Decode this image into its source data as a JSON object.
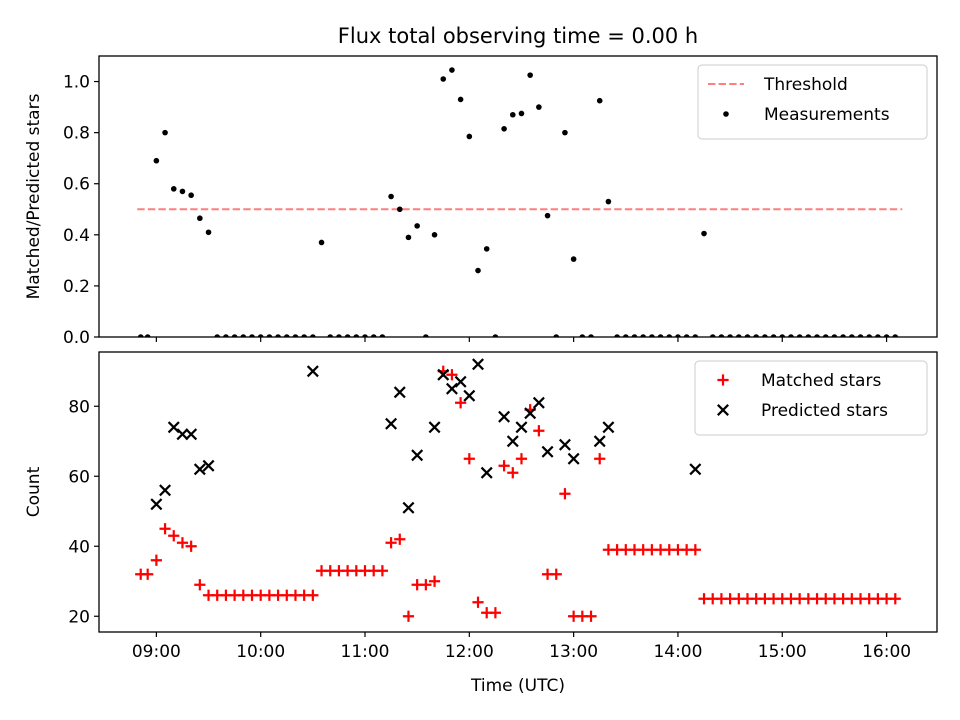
{
  "figure": {
    "title": "Flux total observing time = 0.00 h",
    "xlabel": "Time (UTC)"
  },
  "chart_data": [
    {
      "type": "scatter",
      "name": "ratio-panel",
      "title": "Flux total observing time = 0.00 h",
      "xlabel": "",
      "ylabel": "Matched/Predicted stars",
      "x_unit": "time of day (UTC)",
      "xlim": [
        "08:27",
        "16:29"
      ],
      "ylim": [
        0,
        1.1
      ],
      "x_ticks": [
        "09:00",
        "10:00",
        "11:00",
        "12:00",
        "13:00",
        "14:00",
        "15:00",
        "16:00"
      ],
      "y_ticks": [
        "0.0",
        "0.2",
        "0.4",
        "0.6",
        "0.8",
        "1.0"
      ],
      "legend_position": "top-right",
      "grid": false,
      "threshold": {
        "name": "Threshold",
        "value": 0.5,
        "x_range": [
          "08:49",
          "16:09"
        ],
        "color": "#ff7f7f",
        "style": "dashed"
      },
      "series": [
        {
          "name": "Measurements",
          "color": "#000000",
          "marker": "dot",
          "x": [
            "08:51",
            "08:55",
            "09:00",
            "09:05",
            "09:10",
            "09:15",
            "09:20",
            "09:25",
            "09:30",
            "09:35",
            "09:40",
            "09:45",
            "09:50",
            "09:55",
            "10:00",
            "10:05",
            "10:10",
            "10:15",
            "10:20",
            "10:25",
            "10:30",
            "10:35",
            "10:40",
            "10:45",
            "10:50",
            "10:55",
            "11:00",
            "11:05",
            "11:10",
            "11:15",
            "11:20",
            "11:25",
            "11:30",
            "11:35",
            "11:40",
            "11:45",
            "11:50",
            "11:55",
            "12:00",
            "12:05",
            "12:10",
            "12:15",
            "12:20",
            "12:25",
            "12:30",
            "12:35",
            "12:40",
            "12:45",
            "12:50",
            "12:55",
            "13:00",
            "13:05",
            "13:10",
            "13:15",
            "13:20",
            "13:25",
            "13:30",
            "13:35",
            "13:40",
            "13:45",
            "13:50",
            "13:55",
            "14:00",
            "14:05",
            "14:10",
            "14:15",
            "14:20",
            "14:25",
            "14:30",
            "14:35",
            "14:40",
            "14:45",
            "14:50",
            "14:55",
            "15:00",
            "15:05",
            "15:10",
            "15:15",
            "15:20",
            "15:25",
            "15:30",
            "15:35",
            "15:40",
            "15:45",
            "15:50",
            "15:55",
            "16:00",
            "16:05"
          ],
          "y": [
            0,
            0,
            0.69,
            0.8,
            0.58,
            0.57,
            0.555,
            0.465,
            0.41,
            0,
            0,
            0,
            0,
            0,
            0,
            0,
            0,
            0,
            0,
            0,
            0,
            0.37,
            0,
            0,
            0,
            0,
            0,
            0,
            0,
            0.55,
            0.5,
            0.39,
            0.435,
            0,
            0.4,
            1.01,
            1.045,
            0.93,
            0.785,
            0.26,
            0.345,
            0,
            0.815,
            0.87,
            0.875,
            1.025,
            0.9,
            0.475,
            0,
            0.8,
            0.305,
            0,
            0,
            0.925,
            0.53,
            0,
            0,
            0,
            0,
            0,
            0,
            0,
            0,
            0,
            0,
            0.405,
            0,
            0,
            0,
            0,
            0,
            0,
            0,
            0,
            0,
            0,
            0,
            0,
            0,
            0,
            0,
            0,
            0,
            0,
            0,
            0,
            0,
            0
          ]
        }
      ]
    },
    {
      "type": "scatter",
      "name": "count-panel",
      "title": "",
      "xlabel": "Time (UTC)",
      "ylabel": "Count",
      "x_unit": "time of day (UTC)",
      "xlim": [
        "08:27",
        "16:29"
      ],
      "ylim": [
        15.5,
        95.5
      ],
      "x_ticks": [
        "09:00",
        "10:00",
        "11:00",
        "12:00",
        "13:00",
        "14:00",
        "15:00",
        "16:00"
      ],
      "y_ticks": [
        "20",
        "40",
        "60",
        "80"
      ],
      "legend_position": "top-right",
      "grid": false,
      "series": [
        {
          "name": "Matched stars",
          "color": "#ff0000",
          "marker": "plus",
          "x": [
            "08:51",
            "08:55",
            "09:00",
            "09:05",
            "09:10",
            "09:15",
            "09:20",
            "09:25",
            "09:30",
            "09:35",
            "09:40",
            "09:45",
            "09:50",
            "09:55",
            "10:00",
            "10:05",
            "10:10",
            "10:15",
            "10:20",
            "10:25",
            "10:30",
            "10:35",
            "10:40",
            "10:45",
            "10:50",
            "10:55",
            "11:00",
            "11:05",
            "11:10",
            "11:15",
            "11:20",
            "11:25",
            "11:30",
            "11:35",
            "11:40",
            "11:45",
            "11:50",
            "11:55",
            "12:00",
            "12:05",
            "12:10",
            "12:15",
            "12:20",
            "12:25",
            "12:30",
            "12:35",
            "12:40",
            "12:45",
            "12:50",
            "12:55",
            "13:00",
            "13:05",
            "13:10",
            "13:15",
            "13:20",
            "13:25",
            "13:30",
            "13:35",
            "13:40",
            "13:45",
            "13:50",
            "13:55",
            "14:00",
            "14:05",
            "14:10",
            "14:15",
            "14:20",
            "14:25",
            "14:30",
            "14:35",
            "14:40",
            "14:45",
            "14:50",
            "14:55",
            "15:00",
            "15:05",
            "15:10",
            "15:15",
            "15:20",
            "15:25",
            "15:30",
            "15:35",
            "15:40",
            "15:45",
            "15:50",
            "15:55",
            "16:00",
            "16:05"
          ],
          "y": [
            32,
            32,
            36,
            45,
            43,
            41,
            40,
            29,
            26,
            26,
            26,
            26,
            26,
            26,
            26,
            26,
            26,
            26,
            26,
            26,
            26,
            33,
            33,
            33,
            33,
            33,
            33,
            33,
            33,
            41,
            42,
            20,
            29,
            29,
            30,
            90,
            89,
            81,
            65,
            24,
            21,
            21,
            63,
            61,
            65,
            79,
            73,
            32,
            32,
            55,
            20,
            20,
            20,
            65,
            39,
            39,
            39,
            39,
            39,
            39,
            39,
            39,
            39,
            39,
            39,
            25,
            25,
            25,
            25,
            25,
            25,
            25,
            25,
            25,
            25,
            25,
            25,
            25,
            25,
            25,
            25,
            25,
            25,
            25,
            25,
            25,
            25,
            25
          ]
        },
        {
          "name": "Predicted stars",
          "color": "#000000",
          "marker": "x",
          "x": [
            "09:00",
            "09:05",
            "09:10",
            "09:15",
            "09:20",
            "09:25",
            "09:30",
            "10:30",
            "11:15",
            "11:20",
            "11:25",
            "11:30",
            "11:40",
            "11:45",
            "11:50",
            "11:55",
            "12:00",
            "12:05",
            "12:10",
            "12:20",
            "12:25",
            "12:30",
            "12:35",
            "12:40",
            "12:45",
            "12:55",
            "13:00",
            "13:15",
            "13:20",
            "14:10"
          ],
          "y": [
            52,
            56,
            74,
            72,
            72,
            62,
            63,
            90,
            75,
            84,
            51,
            66,
            74,
            89,
            85,
            87,
            83,
            92,
            61,
            77,
            70,
            74,
            78,
            81,
            67,
            69,
            65,
            70,
            74,
            62
          ]
        }
      ]
    }
  ]
}
